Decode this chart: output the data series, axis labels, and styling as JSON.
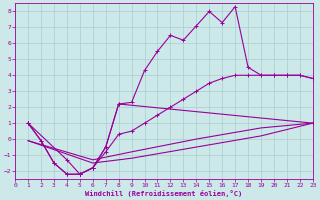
{
  "xlabel": "Windchill (Refroidissement éolien,°C)",
  "background_color": "#cce8e8",
  "grid_color": "#aacece",
  "line_color": "#990099",
  "xlim": [
    0,
    23
  ],
  "ylim": [
    -2.5,
    8.5
  ],
  "xticks": [
    0,
    1,
    2,
    3,
    4,
    5,
    6,
    7,
    8,
    9,
    10,
    11,
    12,
    13,
    14,
    15,
    16,
    17,
    18,
    19,
    20,
    21,
    22,
    23
  ],
  "yticks": [
    -2,
    -1,
    0,
    1,
    2,
    3,
    4,
    5,
    6,
    7,
    8
  ],
  "line1_x": [
    1,
    2,
    3,
    4,
    5,
    6,
    7,
    8,
    9,
    10,
    11,
    12,
    13,
    14,
    15,
    16,
    17,
    18,
    19,
    20,
    21,
    22,
    23
  ],
  "line1_y": [
    1.0,
    -0.1,
    -1.5,
    -2.2,
    -2.2,
    -1.8,
    -0.5,
    2.2,
    2.3,
    4.3,
    5.5,
    6.5,
    6.2,
    7.1,
    8.0,
    7.3,
    8.3,
    4.5,
    4.0,
    4.0,
    4.0,
    4.0,
    3.8
  ],
  "line2_x": [
    1,
    2,
    3,
    4,
    5,
    6,
    7,
    8,
    23
  ],
  "line2_y": [
    1.0,
    -0.1,
    -1.5,
    -2.2,
    -2.2,
    -1.8,
    -0.5,
    2.2,
    1.0
  ],
  "line3_x": [
    1,
    4,
    5,
    6,
    7,
    8,
    9,
    10,
    11,
    12,
    13,
    14,
    15,
    16,
    17,
    18,
    19,
    20,
    21,
    22,
    23
  ],
  "line3_y": [
    1.0,
    -1.3,
    -2.2,
    -1.8,
    -0.8,
    0.3,
    0.5,
    1.0,
    1.5,
    2.0,
    2.5,
    3.0,
    3.5,
    3.8,
    4.0,
    4.0,
    4.0,
    4.0,
    4.0,
    4.0,
    3.8
  ],
  "line4_x": [
    1,
    6,
    9,
    14,
    19,
    23
  ],
  "line4_y": [
    -0.1,
    -1.3,
    -0.8,
    0.0,
    0.7,
    1.0
  ],
  "line5_x": [
    1,
    6,
    9,
    14,
    19,
    23
  ],
  "line5_y": [
    -0.1,
    -1.5,
    -1.2,
    -0.5,
    0.2,
    1.0
  ]
}
